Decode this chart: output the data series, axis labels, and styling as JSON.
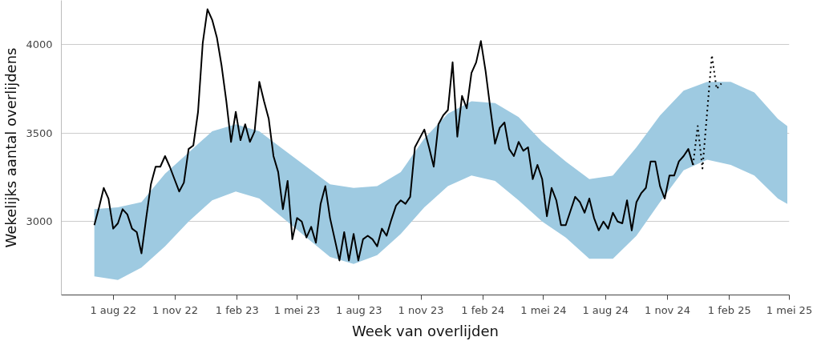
{
  "chart_data": {
    "type": "line",
    "xlabel": "Week van overlijden",
    "ylabel": "Wekelijks aantal overlijdens",
    "xlim": [
      "2022-05-16",
      "2025-05-01"
    ],
    "ylim": [
      2585,
      4250
    ],
    "xticks": [
      {
        "value": "2022-08-01",
        "label": "1 aug 22"
      },
      {
        "value": "2022-11-01",
        "label": "1 nov 22"
      },
      {
        "value": "2023-02-01",
        "label": "1 feb 23"
      },
      {
        "value": "2023-05-01",
        "label": "1 mei 23"
      },
      {
        "value": "2023-08-01",
        "label": "1 aug 23"
      },
      {
        "value": "2023-11-01",
        "label": "1 nov 23"
      },
      {
        "value": "2024-02-01",
        "label": "1 feb 24"
      },
      {
        "value": "2024-05-01",
        "label": "1 mei 24"
      },
      {
        "value": "2024-08-01",
        "label": "1 aug 24"
      },
      {
        "value": "2024-11-01",
        "label": "1 nov 24"
      },
      {
        "value": "2025-02-01",
        "label": "1 feb 25"
      },
      {
        "value": "2025-05-01",
        "label": "1 mei 25"
      }
    ],
    "yticks": [
      3000,
      3500,
      4000
    ],
    "grid": "y",
    "series": [
      {
        "type": "line",
        "color": "#9ecae1",
        "values": [
          null,
          null,
          null,
          null,
          null,
          null,
          null,
          null,
          null,
          null,
          null,
          null,
          null,
          null,
          null,
          null,
          null,
          null,
          null,
          null,
          null,
          null,
          null,
          null,
          null,
          null,
          null,
          null,
          null,
          null,
          null
        ],
        "x": [
          "2022-07-04",
          "2022-08-08",
          "2022-09-12",
          "2022-10-17",
          "2022-11-21",
          "2022-12-26",
          "2023-01-30",
          "2023-03-06",
          "2023-04-10",
          "2023-05-15",
          "2023-06-19",
          "2023-07-24",
          "2023-08-28",
          "2023-10-02",
          "2023-11-06",
          "2023-12-11",
          "2024-01-15",
          "2024-02-19",
          "2024-03-25",
          "2024-04-29",
          "2024-06-03",
          "2024-07-08",
          "2024-08-12",
          "2024-09-16",
          "2024-10-21",
          "2024-11-25",
          "2024-12-30",
          "2025-02-03",
          "2025-03-10",
          "2025-04-14",
          "2025-04-28"
        ],
        "lower": [
          2690,
          2670,
          2740,
          2860,
          3000,
          3120,
          3170,
          3130,
          3020,
          2910,
          2800,
          2760,
          2810,
          2930,
          3080,
          3200,
          3260,
          3230,
          3120,
          3000,
          2910,
          2790,
          2790,
          2920,
          3110,
          3290,
          3350,
          3320,
          3260,
          3130,
          3100
        ],
        "upper": [
          3070,
          3080,
          3110,
          3270,
          3390,
          3510,
          3550,
          3510,
          3410,
          3310,
          3210,
          3190,
          3200,
          3280,
          3470,
          3610,
          3680,
          3670,
          3590,
          3450,
          3340,
          3240,
          3260,
          3420,
          3600,
          3740,
          3790,
          3790,
          3730,
          3580,
          3540
        ]
      },
      {
        "color": "#000000",
        "line_style": "solid",
        "x": [
          "2022-07-04",
          "2022-07-11",
          "2022-07-18",
          "2022-07-25",
          "2022-08-01",
          "2022-08-08",
          "2022-08-15",
          "2022-08-22",
          "2022-08-29",
          "2022-09-05",
          "2022-09-12",
          "2022-09-19",
          "2022-09-26",
          "2022-10-03",
          "2022-10-10",
          "2022-10-17",
          "2022-10-24",
          "2022-10-31",
          "2022-11-07",
          "2022-11-14",
          "2022-11-21",
          "2022-11-28",
          "2022-12-05",
          "2022-12-12",
          "2022-12-19",
          "2022-12-26",
          "2023-01-02",
          "2023-01-09",
          "2023-01-16",
          "2023-01-23",
          "2023-01-30",
          "2023-02-06",
          "2023-02-13",
          "2023-02-20",
          "2023-02-27",
          "2023-03-06",
          "2023-03-13",
          "2023-03-20",
          "2023-03-27",
          "2023-04-03",
          "2023-04-10",
          "2023-04-17",
          "2023-04-24",
          "2023-05-01",
          "2023-05-08",
          "2023-05-15",
          "2023-05-22",
          "2023-05-29",
          "2023-06-05",
          "2023-06-12",
          "2023-06-19",
          "2023-06-26",
          "2023-07-03",
          "2023-07-10",
          "2023-07-17",
          "2023-07-24",
          "2023-07-31",
          "2023-08-07",
          "2023-08-14",
          "2023-08-21",
          "2023-08-28",
          "2023-09-04",
          "2023-09-11",
          "2023-09-18",
          "2023-09-25",
          "2023-10-02",
          "2023-10-09",
          "2023-10-16",
          "2023-10-23",
          "2023-10-30",
          "2023-11-06",
          "2023-11-13",
          "2023-11-20",
          "2023-11-27",
          "2023-12-04",
          "2023-12-11",
          "2023-12-18",
          "2023-12-25",
          "2024-01-01",
          "2024-01-08",
          "2024-01-15",
          "2024-01-22",
          "2024-01-29",
          "2024-02-05",
          "2024-02-12",
          "2024-02-19",
          "2024-02-26",
          "2024-03-04",
          "2024-03-11",
          "2024-03-18",
          "2024-03-25",
          "2024-04-01",
          "2024-04-08",
          "2024-04-15",
          "2024-04-22",
          "2024-04-29",
          "2024-05-06",
          "2024-05-13",
          "2024-05-20",
          "2024-05-27",
          "2024-06-03",
          "2024-06-10",
          "2024-06-17",
          "2024-06-24",
          "2024-07-01",
          "2024-07-08",
          "2024-07-15",
          "2024-07-22",
          "2024-07-29",
          "2024-08-05",
          "2024-08-12",
          "2024-08-19",
          "2024-08-26",
          "2024-09-02",
          "2024-09-09",
          "2024-09-16",
          "2024-09-23",
          "2024-09-30",
          "2024-10-07",
          "2024-10-14",
          "2024-10-21",
          "2024-10-28",
          "2024-11-04",
          "2024-11-11",
          "2024-11-18",
          "2024-11-25",
          "2024-12-02",
          "2024-12-09"
        ],
        "values": [
          2980,
          3080,
          3190,
          3130,
          2960,
          2990,
          3070,
          3040,
          2960,
          2940,
          2820,
          3020,
          3210,
          3310,
          3310,
          3370,
          3310,
          3240,
          3170,
          3220,
          3410,
          3430,
          3620,
          4010,
          4200,
          4140,
          4040,
          3880,
          3680,
          3450,
          3620,
          3460,
          3550,
          3450,
          3510,
          3790,
          3680,
          3580,
          3370,
          3280,
          3070,
          3230,
          2900,
          3020,
          3000,
          2910,
          2970,
          2880,
          3100,
          3200,
          3020,
          2900,
          2780,
          2940,
          2780,
          2930,
          2780,
          2900,
          2920,
          2900,
          2860,
          2960,
          2920,
          3010,
          3090,
          3120,
          3100,
          3140,
          3420,
          3470,
          3520,
          3420,
          3310,
          3550,
          3600,
          3630,
          3900,
          3480,
          3710,
          3640,
          3840,
          3900,
          4020,
          3850,
          3640,
          3440,
          3530,
          3560,
          3410,
          3370,
          3450,
          3400,
          3420,
          3240,
          3320,
          3240,
          3030,
          3190,
          3120,
          2980,
          2980,
          3060,
          3140,
          3110,
          3050,
          3130,
          3020,
          2950,
          3000,
          2960,
          3050,
          3000,
          2990,
          3120,
          2950,
          3110,
          3160,
          3190,
          3340,
          3340,
          3200,
          3130,
          3260,
          3260,
          3340,
          3370,
          3410,
          3320
        ]
      },
      {
        "color": "#000000",
        "line_style": "dotted",
        "x": [
          "2024-12-09",
          "2024-12-16",
          "2024-12-23",
          "2024-12-30",
          "2025-01-06",
          "2025-01-13",
          "2025-01-20"
        ],
        "values": [
          3320,
          3540,
          3300,
          3620,
          3940,
          3750,
          3780
        ]
      }
    ]
  }
}
